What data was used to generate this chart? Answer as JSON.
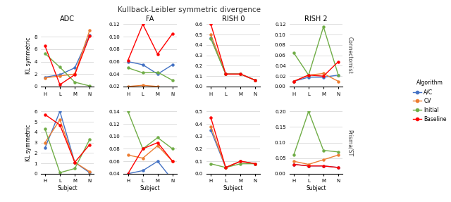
{
  "title": "Kullback-Leibler symmetric divergence",
  "subjects": [
    "H",
    "L",
    "M",
    "N"
  ],
  "row_labels": [
    "Connectomist",
    "Prisma/ST"
  ],
  "col_labels": [
    "ADC",
    "FA",
    "RISH 0",
    "RISH 2"
  ],
  "algorithms": [
    "A/C",
    "CV",
    "Initial",
    "Baseline"
  ],
  "colors": [
    "#4472C4",
    "#ED7D31",
    "#70AD47",
    "#FF0000"
  ],
  "data": {
    "Connectomist": {
      "ADC": {
        "A/C": [
          1.5,
          1.9,
          3.0,
          8.2
        ],
        "CV": [
          1.4,
          1.7,
          2.0,
          9.0
        ],
        "Initial": [
          5.3,
          3.1,
          0.7,
          0.1
        ],
        "Baseline": [
          6.5,
          0.3,
          1.9,
          8.1
        ]
      },
      "FA": {
        "A/C": [
          0.06,
          0.055,
          0.04,
          0.055
        ],
        "CV": [
          0.02,
          0.022,
          0.02,
          0.01
        ],
        "Initial": [
          0.05,
          0.042,
          0.043,
          0.03
        ],
        "Baseline": [
          0.062,
          0.12,
          0.072,
          0.105
        ]
      },
      "RISH 0": {
        "A/C": [
          0.47,
          0.12,
          0.12,
          0.06
        ],
        "CV": [
          0.5,
          0.12,
          0.12,
          0.06
        ],
        "Initial": [
          0.46,
          0.12,
          0.12,
          0.06
        ],
        "Baseline": [
          0.6,
          0.12,
          0.12,
          0.06
        ]
      },
      "RISH 2": {
        "A/C": [
          0.01,
          0.018,
          0.018,
          0.022
        ],
        "CV": [
          0.01,
          0.022,
          0.025,
          0.01
        ],
        "Initial": [
          0.065,
          0.022,
          0.115,
          0.022
        ],
        "Baseline": [
          0.01,
          0.022,
          0.02,
          0.048
        ]
      }
    },
    "Prisma/ST": {
      "ADC": {
        "A/C": [
          2.5,
          6.0,
          1.1,
          0.1
        ],
        "CV": [
          3.0,
          5.2,
          1.1,
          0.2
        ],
        "Initial": [
          4.3,
          0.1,
          0.5,
          3.3
        ],
        "Baseline": [
          5.7,
          4.7,
          1.1,
          2.8
        ]
      },
      "FA": {
        "A/C": [
          0.04,
          0.045,
          0.06,
          0.03
        ],
        "CV": [
          0.07,
          0.065,
          0.085,
          0.06
        ],
        "Initial": [
          0.14,
          0.08,
          0.098,
          0.08
        ],
        "Baseline": [
          0.04,
          0.08,
          0.09,
          0.06
        ]
      },
      "RISH 0": {
        "A/C": [
          0.35,
          0.05,
          0.1,
          0.08
        ],
        "CV": [
          0.38,
          0.05,
          0.1,
          0.08
        ],
        "Initial": [
          0.08,
          0.05,
          0.08,
          0.08
        ],
        "Baseline": [
          0.45,
          0.05,
          0.1,
          0.08
        ]
      },
      "RISH 2": {
        "A/C": [
          0.03,
          0.025,
          0.025,
          0.02
        ],
        "CV": [
          0.04,
          0.03,
          0.045,
          0.06
        ],
        "Initial": [
          0.06,
          0.2,
          0.075,
          0.07
        ],
        "Baseline": [
          0.03,
          0.025,
          0.025,
          0.02
        ]
      }
    }
  },
  "ylims": {
    "Connectomist": {
      "ADC": [
        0,
        10
      ],
      "FA": [
        0.02,
        0.12
      ],
      "RISH 0": [
        0.0,
        0.6
      ],
      "RISH 2": [
        0.0,
        0.12
      ]
    },
    "Prisma/ST": {
      "ADC": [
        0,
        6
      ],
      "FA": [
        0.04,
        0.14
      ],
      "RISH 0": [
        0.0,
        0.5
      ],
      "RISH 2": [
        0.0,
        0.2
      ]
    }
  },
  "yticks": {
    "Connectomist": {
      "ADC": [
        0,
        2,
        4,
        6,
        8
      ],
      "FA": [
        0.02,
        0.04,
        0.06,
        0.08,
        0.1,
        0.12
      ],
      "RISH 0": [
        0.0,
        0.1,
        0.2,
        0.3,
        0.4,
        0.5,
        0.6
      ],
      "RISH 2": [
        0.0,
        0.02,
        0.04,
        0.06,
        0.08,
        0.1,
        0.12
      ]
    },
    "Prisma/ST": {
      "ADC": [
        0,
        1,
        2,
        3,
        4,
        5,
        6
      ],
      "FA": [
        0.04,
        0.06,
        0.08,
        0.1,
        0.12,
        0.14
      ],
      "RISH 0": [
        0.0,
        0.1,
        0.2,
        0.3,
        0.4,
        0.5
      ],
      "RISH 2": [
        0.0,
        0.05,
        0.1,
        0.15,
        0.2
      ]
    }
  }
}
